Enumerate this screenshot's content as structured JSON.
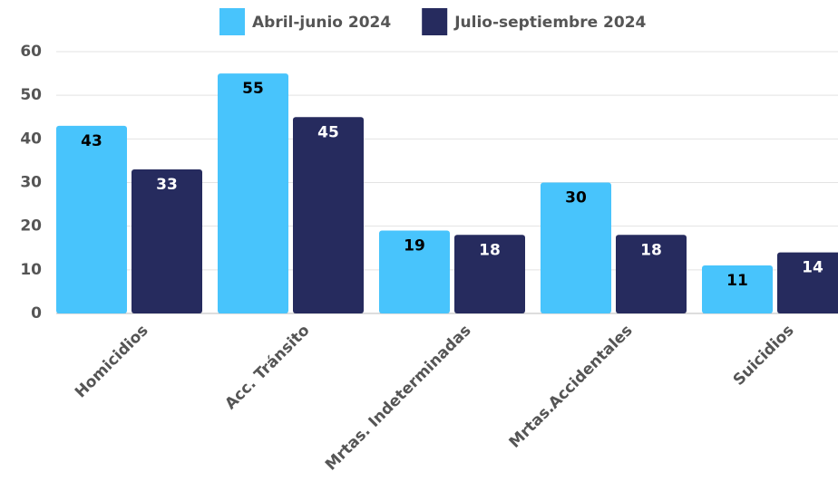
{
  "chart_data": {
    "type": "bar",
    "categories": [
      "Homicidios",
      "Acc. Tránsito",
      "Mrtas. Indeterminadas",
      "Mrtas.Accidentales",
      "Suicidios"
    ],
    "series": [
      {
        "name": "Abril-junio 2024",
        "color": "#48c4fc",
        "values": [
          43,
          55,
          19,
          30,
          11
        ]
      },
      {
        "name": "Julio-septiembre 2024",
        "color": "#262b5e",
        "values": [
          33,
          45,
          18,
          18,
          14
        ]
      }
    ],
    "ylim": [
      0,
      60
    ],
    "yticks": [
      0,
      10,
      20,
      30,
      40,
      50,
      60
    ],
    "grid": true,
    "legend": "top"
  }
}
